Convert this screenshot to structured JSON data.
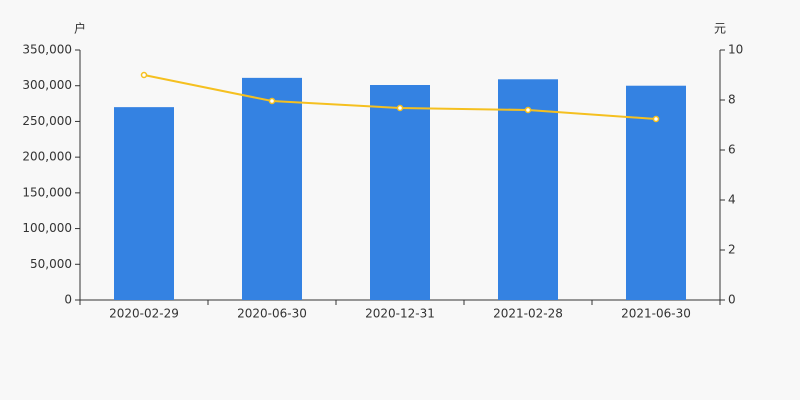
{
  "chart_data": {
    "type": "bar-line",
    "y_label": "户",
    "y2_label": "元",
    "categories": [
      "2020-02-29",
      "2020-06-30",
      "2020-12-31",
      "2021-02-28",
      "2021-06-30"
    ],
    "series": [
      {
        "type": "bar",
        "color": "#3482e2",
        "values": [
          270000,
          311000,
          301000,
          309000,
          300000
        ]
      },
      {
        "type": "line",
        "axis": "y2",
        "color": "#f5c020",
        "values": [
          9.0,
          7.96,
          7.68,
          7.6,
          7.24
        ]
      }
    ],
    "ylim": [
      0,
      350000
    ],
    "yticks": [
      0,
      {
        "value": 50000,
        "label": "50,000"
      },
      {
        "value": 100000,
        "label": "100,000"
      },
      {
        "value": 150000,
        "label": "150,000"
      },
      {
        "value": 200000,
        "label": "200,000"
      },
      {
        "value": 250000,
        "label": "250,000"
      },
      {
        "value": 300000,
        "label": "300,000"
      },
      {
        "value": 350000,
        "label": "350,000"
      }
    ],
    "y2lim": [
      0,
      10
    ],
    "y2ticks": [
      0,
      2,
      4,
      6,
      8,
      10
    ]
  }
}
